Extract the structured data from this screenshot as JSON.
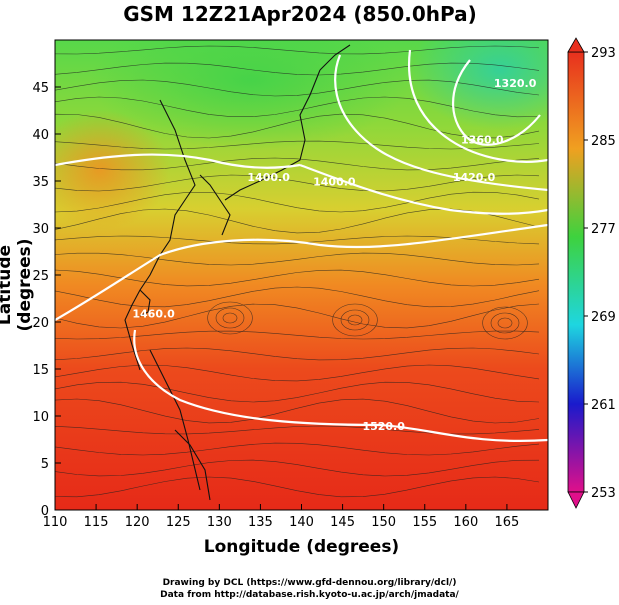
{
  "title": "GSM 12Z21Apr2024 (850.0hPa)",
  "xaxis": {
    "label": "Longitude (degrees)",
    "min": 110,
    "max": 170,
    "ticks": [
      110,
      115,
      120,
      125,
      130,
      135,
      140,
      145,
      150,
      155,
      160,
      165
    ]
  },
  "yaxis": {
    "label": "Latitude  (degrees)",
    "min": 0,
    "max": 50,
    "ticks": [
      0,
      5,
      10,
      15,
      20,
      25,
      30,
      35,
      40,
      45
    ]
  },
  "colorbar": {
    "ticks": [
      "293",
      "285",
      "277",
      "269",
      "261",
      "253"
    ],
    "min": 253,
    "max": 293,
    "colors": [
      "#e0108a",
      "#1a1acc",
      "#1e90ff",
      "#00e5d0",
      "#3ed23e",
      "#f0a020",
      "#e83b1e"
    ]
  },
  "contour_labels": [
    {
      "text": "1520.0",
      "lon": 150,
      "lat": 8.5
    },
    {
      "text": "1460.0",
      "lon": 122,
      "lat": 20.5
    },
    {
      "text": "1400.0",
      "lon": 136,
      "lat": 35
    },
    {
      "text": "1400.0",
      "lon": 144,
      "lat": 34.5
    },
    {
      "text": "1360.0",
      "lon": 162,
      "lat": 39
    },
    {
      "text": "1420.0",
      "lon": 161,
      "lat": 35
    },
    {
      "text": "1320.0",
      "lon": 166,
      "lat": 45
    }
  ],
  "credits": [
    "Drawing by DCL (https://www.gfd-dennou.org/library/dcl/)",
    "Data from http://database.rish.kyoto-u.ac.jp/arch/jmadata/"
  ]
}
